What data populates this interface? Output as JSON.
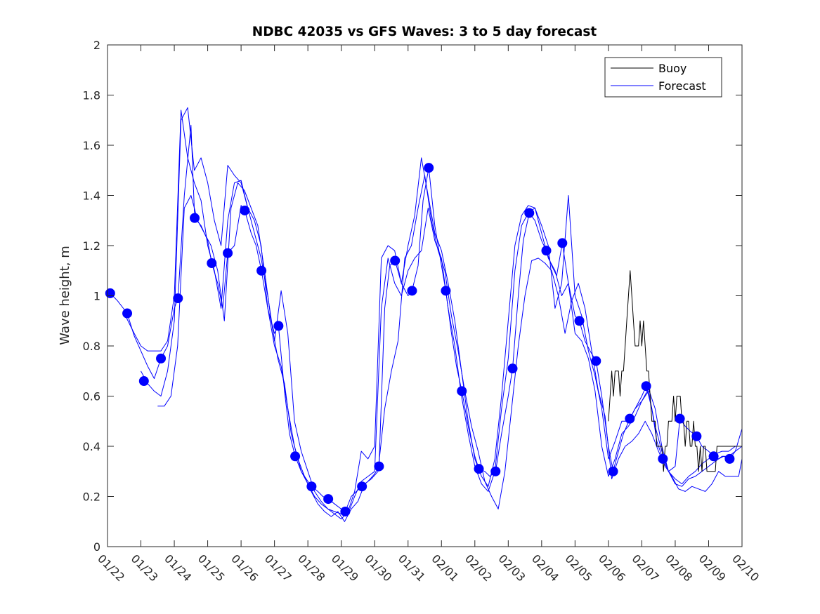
{
  "chart_data": {
    "type": "line",
    "title": "NDBC 42035 vs GFS Waves: 3 to 5 day forecast",
    "xlabel": "",
    "ylabel": "Wave height, m",
    "x_unit": "days since 01/22",
    "xlim": [
      0,
      19
    ],
    "ylim": [
      0,
      2
    ],
    "xtick_labels": [
      "01/22",
      "01/23",
      "01/24",
      "01/25",
      "01/26",
      "01/27",
      "01/28",
      "01/29",
      "01/30",
      "01/31",
      "02/01",
      "02/02",
      "02/03",
      "02/04",
      "02/05",
      "02/06",
      "02/07",
      "02/08",
      "02/09",
      "02/10"
    ],
    "ytick_values": [
      0,
      0.2,
      0.4,
      0.6,
      0.8,
      1,
      1.2,
      1.4,
      1.6,
      1.8,
      2
    ],
    "ytick_labels": [
      "0",
      "0.2",
      "0.4",
      "0.6",
      "0.8",
      "1",
      "1.2",
      "1.4",
      "1.6",
      "1.8",
      "2"
    ],
    "grid": false,
    "legend": {
      "placement": "top-right",
      "entries": [
        {
          "label": "Buoy",
          "color": "#000000"
        },
        {
          "label": "Forecast",
          "color": "#0000ff"
        }
      ]
    },
    "series": [
      {
        "name": "Buoy",
        "color": "#000000",
        "x": [
          15.0,
          15.05,
          15.1,
          15.15,
          15.2,
          15.25,
          15.3,
          15.35,
          15.4,
          15.45,
          15.5,
          15.55,
          15.6,
          15.65,
          15.7,
          15.75,
          15.8,
          15.85,
          15.9,
          15.95,
          16.0,
          16.05,
          16.1,
          16.15,
          16.2,
          16.25,
          16.3,
          16.35,
          16.4,
          16.45,
          16.5,
          16.55,
          16.6,
          16.65,
          16.7,
          16.75,
          16.8,
          16.85,
          16.9,
          16.95,
          17.0,
          17.05,
          17.1,
          17.15,
          17.2,
          17.25,
          17.3,
          17.35,
          17.4,
          17.45,
          17.5,
          17.55,
          17.6,
          17.65,
          17.7,
          17.75,
          17.8,
          17.85,
          17.9,
          17.95,
          18.0,
          18.05,
          18.1,
          18.15,
          18.2,
          18.25,
          18.3,
          18.35,
          18.4,
          18.45,
          18.5,
          18.55,
          18.6,
          18.65,
          18.7,
          18.75,
          18.8,
          18.85,
          18.9,
          18.95,
          19.0
        ],
        "y": [
          0.5,
          0.6,
          0.7,
          0.6,
          0.7,
          0.7,
          0.7,
          0.6,
          0.7,
          0.7,
          0.8,
          0.9,
          1.0,
          1.1,
          1.0,
          0.9,
          0.8,
          0.8,
          0.8,
          0.9,
          0.8,
          0.9,
          0.8,
          0.7,
          0.7,
          0.6,
          0.5,
          0.5,
          0.5,
          0.4,
          0.4,
          0.4,
          0.4,
          0.3,
          0.4,
          0.4,
          0.5,
          0.5,
          0.5,
          0.6,
          0.5,
          0.6,
          0.6,
          0.6,
          0.5,
          0.5,
          0.4,
          0.5,
          0.5,
          0.4,
          0.4,
          0.5,
          0.4,
          0.4,
          0.3,
          0.4,
          0.3,
          0.4,
          0.4,
          0.3,
          0.3,
          0.3,
          0.3,
          0.3,
          0.3,
          0.4,
          0.4,
          0.4,
          0.4,
          0.4,
          0.4,
          0.4,
          0.4,
          0.4,
          0.4,
          0.4,
          0.4,
          0.4,
          0.4,
          0.4,
          0.4
        ]
      },
      {
        "name": "Forecast run 1",
        "color": "#0000ff",
        "x": [
          0.08,
          0.3,
          0.59,
          0.8,
          1.0,
          1.2,
          1.4,
          1.6,
          1.8,
          2.0,
          2.11,
          2.3,
          2.5,
          2.61,
          2.8,
          3.0,
          3.12,
          3.3,
          3.45,
          3.6,
          3.8,
          4.0,
          4.11,
          4.3,
          4.45,
          4.61,
          4.8,
          5.0,
          5.12,
          5.3,
          5.45,
          5.62,
          5.8,
          6.0,
          6.11,
          6.3,
          6.45,
          6.61,
          6.8,
          7.0,
          7.12,
          7.3,
          7.45,
          7.62,
          7.8,
          8.0,
          8.13,
          8.3,
          8.45,
          8.61,
          8.8,
          9.0,
          9.12,
          9.3,
          9.45,
          9.62,
          9.8,
          10.0,
          10.13,
          10.3,
          10.45,
          10.61,
          10.8,
          11.0,
          11.12,
          11.3,
          11.45,
          11.62,
          11.8,
          12.0,
          12.13,
          12.3,
          12.45,
          12.63,
          12.8,
          13.0,
          13.14,
          13.3,
          13.45,
          13.62,
          13.8,
          14.0,
          14.13,
          14.3,
          14.45,
          14.63,
          14.8,
          15.0,
          15.14,
          15.3,
          15.45,
          15.64,
          15.8,
          16.0,
          16.13,
          16.3,
          16.45,
          16.63,
          16.8,
          17.0,
          17.14,
          17.3,
          17.45,
          17.64,
          17.8,
          18.0,
          18.15,
          18.3,
          18.45,
          18.63,
          18.8,
          19.0
        ],
        "y": [
          1.01,
          0.98,
          0.93,
          0.84,
          0.78,
          0.72,
          0.67,
          0.75,
          0.8,
          0.95,
          0.99,
          1.4,
          1.68,
          1.31,
          1.28,
          1.22,
          1.13,
          1.05,
          0.95,
          1.17,
          1.2,
          1.36,
          1.34,
          1.25,
          1.2,
          1.1,
          0.95,
          0.85,
          0.88,
          0.62,
          0.45,
          0.36,
          0.3,
          0.26,
          0.24,
          0.22,
          0.2,
          0.19,
          0.17,
          0.15,
          0.14,
          0.2,
          0.22,
          0.24,
          0.26,
          0.29,
          0.32,
          0.95,
          1.12,
          1.14,
          1.05,
          1.0,
          1.02,
          1.12,
          1.38,
          1.51,
          1.28,
          1.12,
          1.02,
          0.85,
          0.72,
          0.62,
          0.48,
          0.36,
          0.31,
          0.3,
          0.28,
          0.3,
          0.45,
          0.6,
          0.71,
          1.0,
          1.22,
          1.33,
          1.3,
          1.22,
          1.18,
          1.12,
          1.08,
          1.21,
          1.05,
          0.92,
          0.9,
          0.82,
          0.78,
          0.74,
          0.6,
          0.4,
          0.3,
          0.38,
          0.45,
          0.51,
          0.55,
          0.6,
          0.64,
          0.55,
          0.42,
          0.35,
          0.3,
          0.32,
          0.51,
          0.48,
          0.46,
          0.44,
          0.4,
          0.38,
          0.36,
          0.35,
          0.36,
          0.35,
          0.38,
          0.4
        ]
      },
      {
        "name": "Forecast run 2",
        "color": "#0000ff",
        "x": [
          0.5,
          0.8,
          1.0,
          1.2,
          1.4,
          1.6,
          1.8,
          2.0,
          2.2,
          2.4,
          2.6,
          2.8,
          3.0,
          3.2,
          3.4,
          3.6,
          3.8,
          4.0,
          4.2,
          4.4,
          4.6,
          4.8,
          5.0,
          5.2,
          5.4,
          5.6,
          5.8,
          6.0,
          6.2,
          6.4,
          6.6,
          6.8,
          7.0,
          7.2,
          7.4,
          7.6,
          7.8,
          8.0,
          8.2,
          8.4,
          8.6,
          8.8,
          9.0,
          9.2,
          9.4,
          9.6,
          9.8,
          10.0,
          10.2,
          10.4,
          10.6,
          10.8,
          11.0,
          11.2,
          11.4,
          11.6,
          11.8,
          12.0,
          12.2,
          12.4,
          12.6,
          12.8,
          13.0,
          13.2,
          13.4,
          13.6,
          13.8,
          14.0,
          14.2,
          14.4,
          14.6,
          14.8,
          15.0,
          15.2,
          15.4,
          15.6,
          15.8,
          16.0,
          16.2,
          16.4,
          16.6,
          16.8,
          17.0,
          17.2,
          17.4,
          17.6,
          17.8,
          18.0,
          18.2,
          18.4,
          18.6,
          18.8,
          19.0
        ],
        "y": [
          0.93,
          0.85,
          0.8,
          0.78,
          0.78,
          0.78,
          0.82,
          1.0,
          1.74,
          1.55,
          1.45,
          1.38,
          1.2,
          1.1,
          0.95,
          1.3,
          1.45,
          1.46,
          1.35,
          1.3,
          1.2,
          0.95,
          0.8,
          0.72,
          0.55,
          0.4,
          0.3,
          0.25,
          0.2,
          0.17,
          0.15,
          0.14,
          0.13,
          0.13,
          0.2,
          0.26,
          0.28,
          0.3,
          0.95,
          1.15,
          1.05,
          1.0,
          1.1,
          1.15,
          1.18,
          1.35,
          1.22,
          1.15,
          0.95,
          0.8,
          0.6,
          0.45,
          0.32,
          0.25,
          0.22,
          0.3,
          0.55,
          0.75,
          1.1,
          1.28,
          1.33,
          1.35,
          1.25,
          1.15,
          1.1,
          1.0,
          1.05,
          0.85,
          0.82,
          0.75,
          0.62,
          0.4,
          0.28,
          0.35,
          0.45,
          0.48,
          0.52,
          0.58,
          0.63,
          0.55,
          0.4,
          0.3,
          0.27,
          0.25,
          0.28,
          0.3,
          0.33,
          0.35,
          0.37,
          0.38,
          0.38,
          0.4,
          0.4
        ]
      },
      {
        "name": "Forecast run 3",
        "color": "#0000ff",
        "x": [
          1.0,
          1.2,
          1.4,
          1.6,
          1.8,
          2.0,
          2.2,
          2.4,
          2.6,
          2.8,
          3.0,
          3.2,
          3.4,
          3.6,
          3.8,
          4.0,
          4.2,
          4.4,
          4.6,
          4.8,
          5.0,
          5.2,
          5.4,
          5.6,
          5.8,
          6.0,
          6.2,
          6.4,
          6.6,
          6.8,
          7.0,
          7.2,
          7.4,
          7.6,
          7.8,
          8.0,
          8.2,
          8.4,
          8.6,
          8.8,
          9.0,
          9.2,
          9.4,
          9.6,
          9.8,
          10.0,
          10.2,
          10.4,
          10.6,
          10.8,
          11.0,
          11.2,
          11.4,
          11.6,
          11.8,
          12.0,
          12.2,
          12.4,
          12.6,
          12.8,
          13.0,
          13.2,
          13.4,
          13.6,
          13.8,
          14.0,
          14.2,
          14.4,
          14.6,
          14.8,
          15.0,
          15.2,
          15.4,
          15.6,
          15.8,
          16.0,
          16.2,
          16.4,
          16.6,
          16.8,
          17.0,
          17.2,
          17.4,
          17.6,
          17.8,
          18.0,
          18.2,
          18.4,
          18.6,
          18.8,
          19.0
        ],
        "y": [
          0.7,
          0.65,
          0.62,
          0.6,
          0.7,
          0.9,
          1.7,
          1.75,
          1.5,
          1.55,
          1.45,
          1.3,
          1.2,
          1.52,
          1.48,
          1.45,
          1.35,
          1.25,
          1.15,
          1.0,
          0.82,
          1.02,
          0.85,
          0.5,
          0.38,
          0.3,
          0.22,
          0.18,
          0.15,
          0.13,
          0.11,
          0.14,
          0.22,
          0.38,
          0.35,
          0.4,
          1.15,
          1.2,
          1.18,
          1.05,
          1.2,
          1.32,
          1.55,
          1.4,
          1.25,
          1.18,
          1.05,
          0.9,
          0.7,
          0.5,
          0.35,
          0.28,
          0.24,
          0.35,
          0.6,
          0.9,
          1.2,
          1.32,
          1.36,
          1.35,
          1.28,
          1.2,
          0.95,
          1.05,
          1.4,
          1.0,
          0.92,
          0.78,
          0.68,
          0.55,
          0.35,
          0.42,
          0.5,
          0.5,
          0.55,
          0.58,
          0.62,
          0.48,
          0.38,
          0.3,
          0.25,
          0.24,
          0.27,
          0.28,
          0.3,
          0.32,
          0.34,
          0.36,
          0.36,
          0.38,
          0.47
        ]
      },
      {
        "name": "Forecast run 4",
        "color": "#0000ff",
        "x": [
          1.5,
          1.7,
          1.9,
          2.1,
          2.3,
          2.5,
          2.7,
          2.9,
          3.1,
          3.3,
          3.5,
          3.7,
          3.9,
          4.1,
          4.3,
          4.5,
          4.7,
          4.9,
          5.1,
          5.3,
          5.5,
          5.7,
          5.9,
          6.1,
          6.3,
          6.5,
          6.7,
          6.9,
          7.1,
          7.3,
          7.5,
          7.7,
          7.9,
          8.1,
          8.3,
          8.5,
          8.7,
          8.9,
          9.1,
          9.3,
          9.5,
          9.7,
          9.9,
          10.1,
          10.3,
          10.5,
          10.7,
          10.9,
          11.1,
          11.3,
          11.5,
          11.7,
          11.9,
          12.1,
          12.3,
          12.5,
          12.7,
          12.9,
          13.1,
          13.3,
          13.5,
          13.7,
          13.9,
          14.1,
          14.3,
          14.5,
          14.7,
          14.9,
          15.1,
          15.3,
          15.5,
          15.7,
          15.9,
          16.1,
          16.3,
          16.5,
          16.7,
          16.9,
          17.1,
          17.3,
          17.5,
          17.7,
          17.9,
          18.1,
          18.3,
          18.5,
          18.7,
          18.9,
          19.0
        ],
        "y": [
          0.56,
          0.56,
          0.6,
          0.8,
          1.35,
          1.4,
          1.3,
          1.25,
          1.2,
          1.1,
          0.9,
          1.35,
          1.45,
          1.42,
          1.35,
          1.28,
          1.1,
          0.9,
          0.75,
          0.65,
          0.45,
          0.35,
          0.28,
          0.22,
          0.17,
          0.14,
          0.12,
          0.14,
          0.1,
          0.15,
          0.18,
          0.25,
          0.27,
          0.3,
          0.55,
          0.7,
          0.82,
          1.15,
          1.2,
          1.35,
          1.48,
          1.3,
          1.18,
          1.1,
          0.92,
          0.78,
          0.62,
          0.48,
          0.38,
          0.26,
          0.2,
          0.15,
          0.3,
          0.55,
          0.8,
          1.0,
          1.14,
          1.15,
          1.13,
          1.1,
          1.0,
          0.85,
          0.98,
          1.05,
          0.95,
          0.78,
          0.62,
          0.52,
          0.27,
          0.35,
          0.4,
          0.42,
          0.45,
          0.5,
          0.45,
          0.38,
          0.32,
          0.28,
          0.23,
          0.22,
          0.24,
          0.23,
          0.22,
          0.25,
          0.3,
          0.28,
          0.28,
          0.28,
          0.35
        ]
      }
    ],
    "markers": {
      "name": "Forecast valid-time markers",
      "color": "#0000ff",
      "x": [
        0.08,
        0.59,
        1.09,
        1.6,
        2.11,
        2.61,
        3.12,
        3.6,
        4.11,
        4.61,
        5.12,
        5.62,
        6.11,
        6.61,
        7.12,
        7.62,
        8.13,
        8.61,
        9.12,
        9.62,
        10.13,
        10.61,
        11.12,
        11.62,
        12.13,
        12.63,
        13.14,
        13.62,
        14.13,
        14.63,
        15.14,
        15.64,
        16.13,
        16.63,
        17.14,
        17.64,
        18.15,
        18.63
      ],
      "y": [
        1.01,
        0.93,
        0.66,
        0.75,
        0.99,
        1.31,
        1.13,
        1.17,
        1.34,
        1.1,
        0.88,
        0.36,
        0.24,
        0.19,
        0.14,
        0.24,
        0.32,
        1.14,
        1.02,
        1.51,
        1.02,
        0.62,
        0.31,
        0.3,
        0.71,
        1.33,
        1.18,
        1.21,
        0.9,
        0.74,
        0.3,
        0.51,
        0.64,
        0.35,
        0.51,
        0.44,
        0.36,
        0.35
      ]
    }
  }
}
